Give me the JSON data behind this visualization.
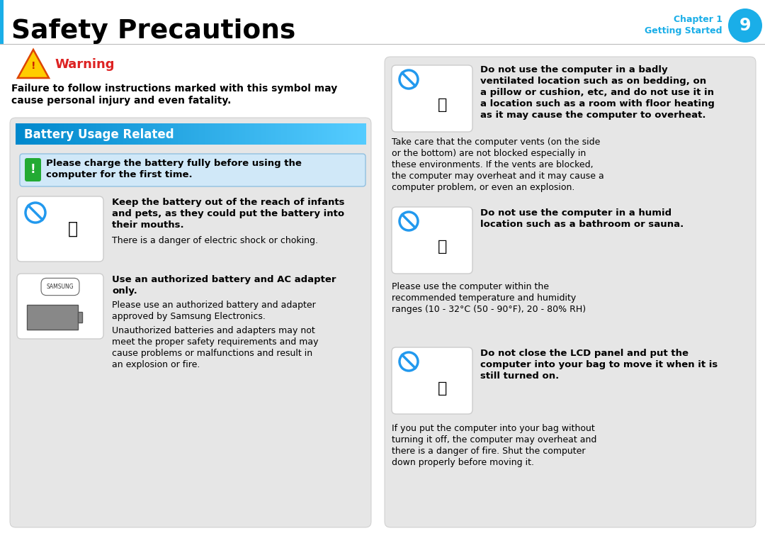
{
  "title": "Safety Precautions",
  "chapter_line1": "Chapter 1",
  "chapter_line2": "Getting Started",
  "chapter_num": "9",
  "blue": "#1aaee8",
  "red": "#dd2222",
  "warning_title": "Warning",
  "warning_body1": "Failure to follow instructions marked with this symbol may",
  "warning_body2": "cause personal injury and even fatality.",
  "battery_header": "Battery Usage Related",
  "charge_text1": "Please charge the battery fully before using the",
  "charge_text2": "computer for the first time.",
  "item1_bold1": "Keep the battery out of the reach of infants",
  "item1_bold2": "and pets, as they could put the battery into",
  "item1_bold3": "their mouths.",
  "item1_normal": "There is a danger of electric shock or choking.",
  "item2_bold1": "Use an authorized battery and AC adapter",
  "item2_bold2": "only.",
  "item2_n1a": "Please use an authorized battery and adapter",
  "item2_n1b": "approved by Samsung Electronics.",
  "item2_n2a": "Unauthorized batteries and adapters may not",
  "item2_n2b": "meet the proper safety requirements and may",
  "item2_n2c": "cause problems or malfunctions and result in",
  "item2_n2d": "an explosion or fire.",
  "r1b1": "Do not use the computer in a badly",
  "r1b2": "ventilated location such as on bedding, on",
  "r1b3": "a pillow or cushion, etc, and do not use it in",
  "r1b4": "a location such as a room with floor heating",
  "r1b5": "as it may cause the computer to overheat.",
  "r1n1": "Take care that the computer vents (on the side",
  "r1n2": "or the bottom) are not blocked especially in",
  "r1n3": "these environments. If the vents are blocked,",
  "r1n4": "the computer may overheat and it may cause a",
  "r1n5": "computer problem, or even an explosion.",
  "r2b1": "Do not use the computer in a humid",
  "r2b2": "location such as a bathroom or sauna.",
  "r2n1": "Please use the computer within the",
  "r2n2": "recommended temperature and humidity",
  "r2n3": "ranges (10 - 32°C (50 - 90°F), 20 - 80% RH)",
  "r3b1": "Do not close the LCD panel and put the",
  "r3b2": "computer into your bag to move it when it is",
  "r3b3": "still turned on.",
  "r3n1": "If you put the computer into your bag without",
  "r3n2": "turning it off, the computer may overheat and",
  "r3n3": "there is a danger of fire. Shut the computer",
  "r3n4": "down properly before moving it."
}
